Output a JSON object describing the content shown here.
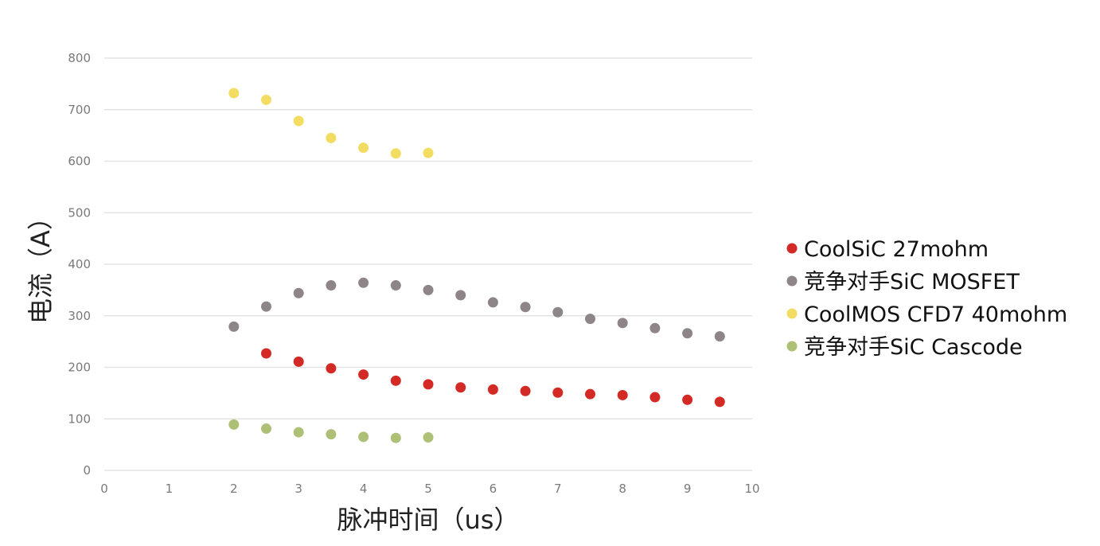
{
  "chart_data": {
    "type": "scatter",
    "xlabel": "脉冲时间（us）",
    "ylabel": "电流（A）",
    "xlim": [
      0,
      10
    ],
    "ylim": [
      0,
      800
    ],
    "x_ticks": [
      "0",
      "1",
      "2",
      "3",
      "4",
      "5",
      "6",
      "7",
      "8",
      "9",
      "10"
    ],
    "y_ticks": [
      "0",
      "100",
      "200",
      "300",
      "400",
      "500",
      "600",
      "700",
      "800"
    ],
    "grid": "horizontal",
    "legend_position": "right",
    "series": [
      {
        "name": "CoolSiC 27mohm",
        "color": "#d42a25",
        "x": [
          2.5,
          3,
          3.5,
          4,
          4.5,
          5,
          5.5,
          6,
          6.5,
          7,
          7.5,
          8,
          8.5,
          9,
          9.5
        ],
        "y": [
          227,
          211,
          198,
          186,
          174,
          167,
          161,
          157,
          154,
          151,
          148,
          146,
          142,
          137,
          133
        ]
      },
      {
        "name": "竞争对手SiC MOSFET",
        "color": "#8d8587",
        "x": [
          2,
          2.5,
          3,
          3.5,
          4,
          4.5,
          5,
          5.5,
          6,
          6.5,
          7,
          7.5,
          8,
          8.5,
          9,
          9.5
        ],
        "y": [
          279,
          318,
          344,
          359,
          364,
          359,
          350,
          340,
          326,
          317,
          307,
          294,
          286,
          276,
          266,
          260
        ]
      },
      {
        "name": "CoolMOS CFD7 40mohm",
        "color": "#f3dc62",
        "x": [
          2,
          2.5,
          3,
          3.5,
          4,
          4.5,
          5
        ],
        "y": [
          732,
          719,
          678,
          645,
          626,
          615,
          616
        ]
      },
      {
        "name": "竞争对手SiC Cascode",
        "color": "#adc076",
        "x": [
          2,
          2.5,
          3,
          3.5,
          4,
          4.5,
          5
        ],
        "y": [
          89,
          81,
          74,
          70,
          65,
          63,
          64
        ]
      }
    ]
  }
}
